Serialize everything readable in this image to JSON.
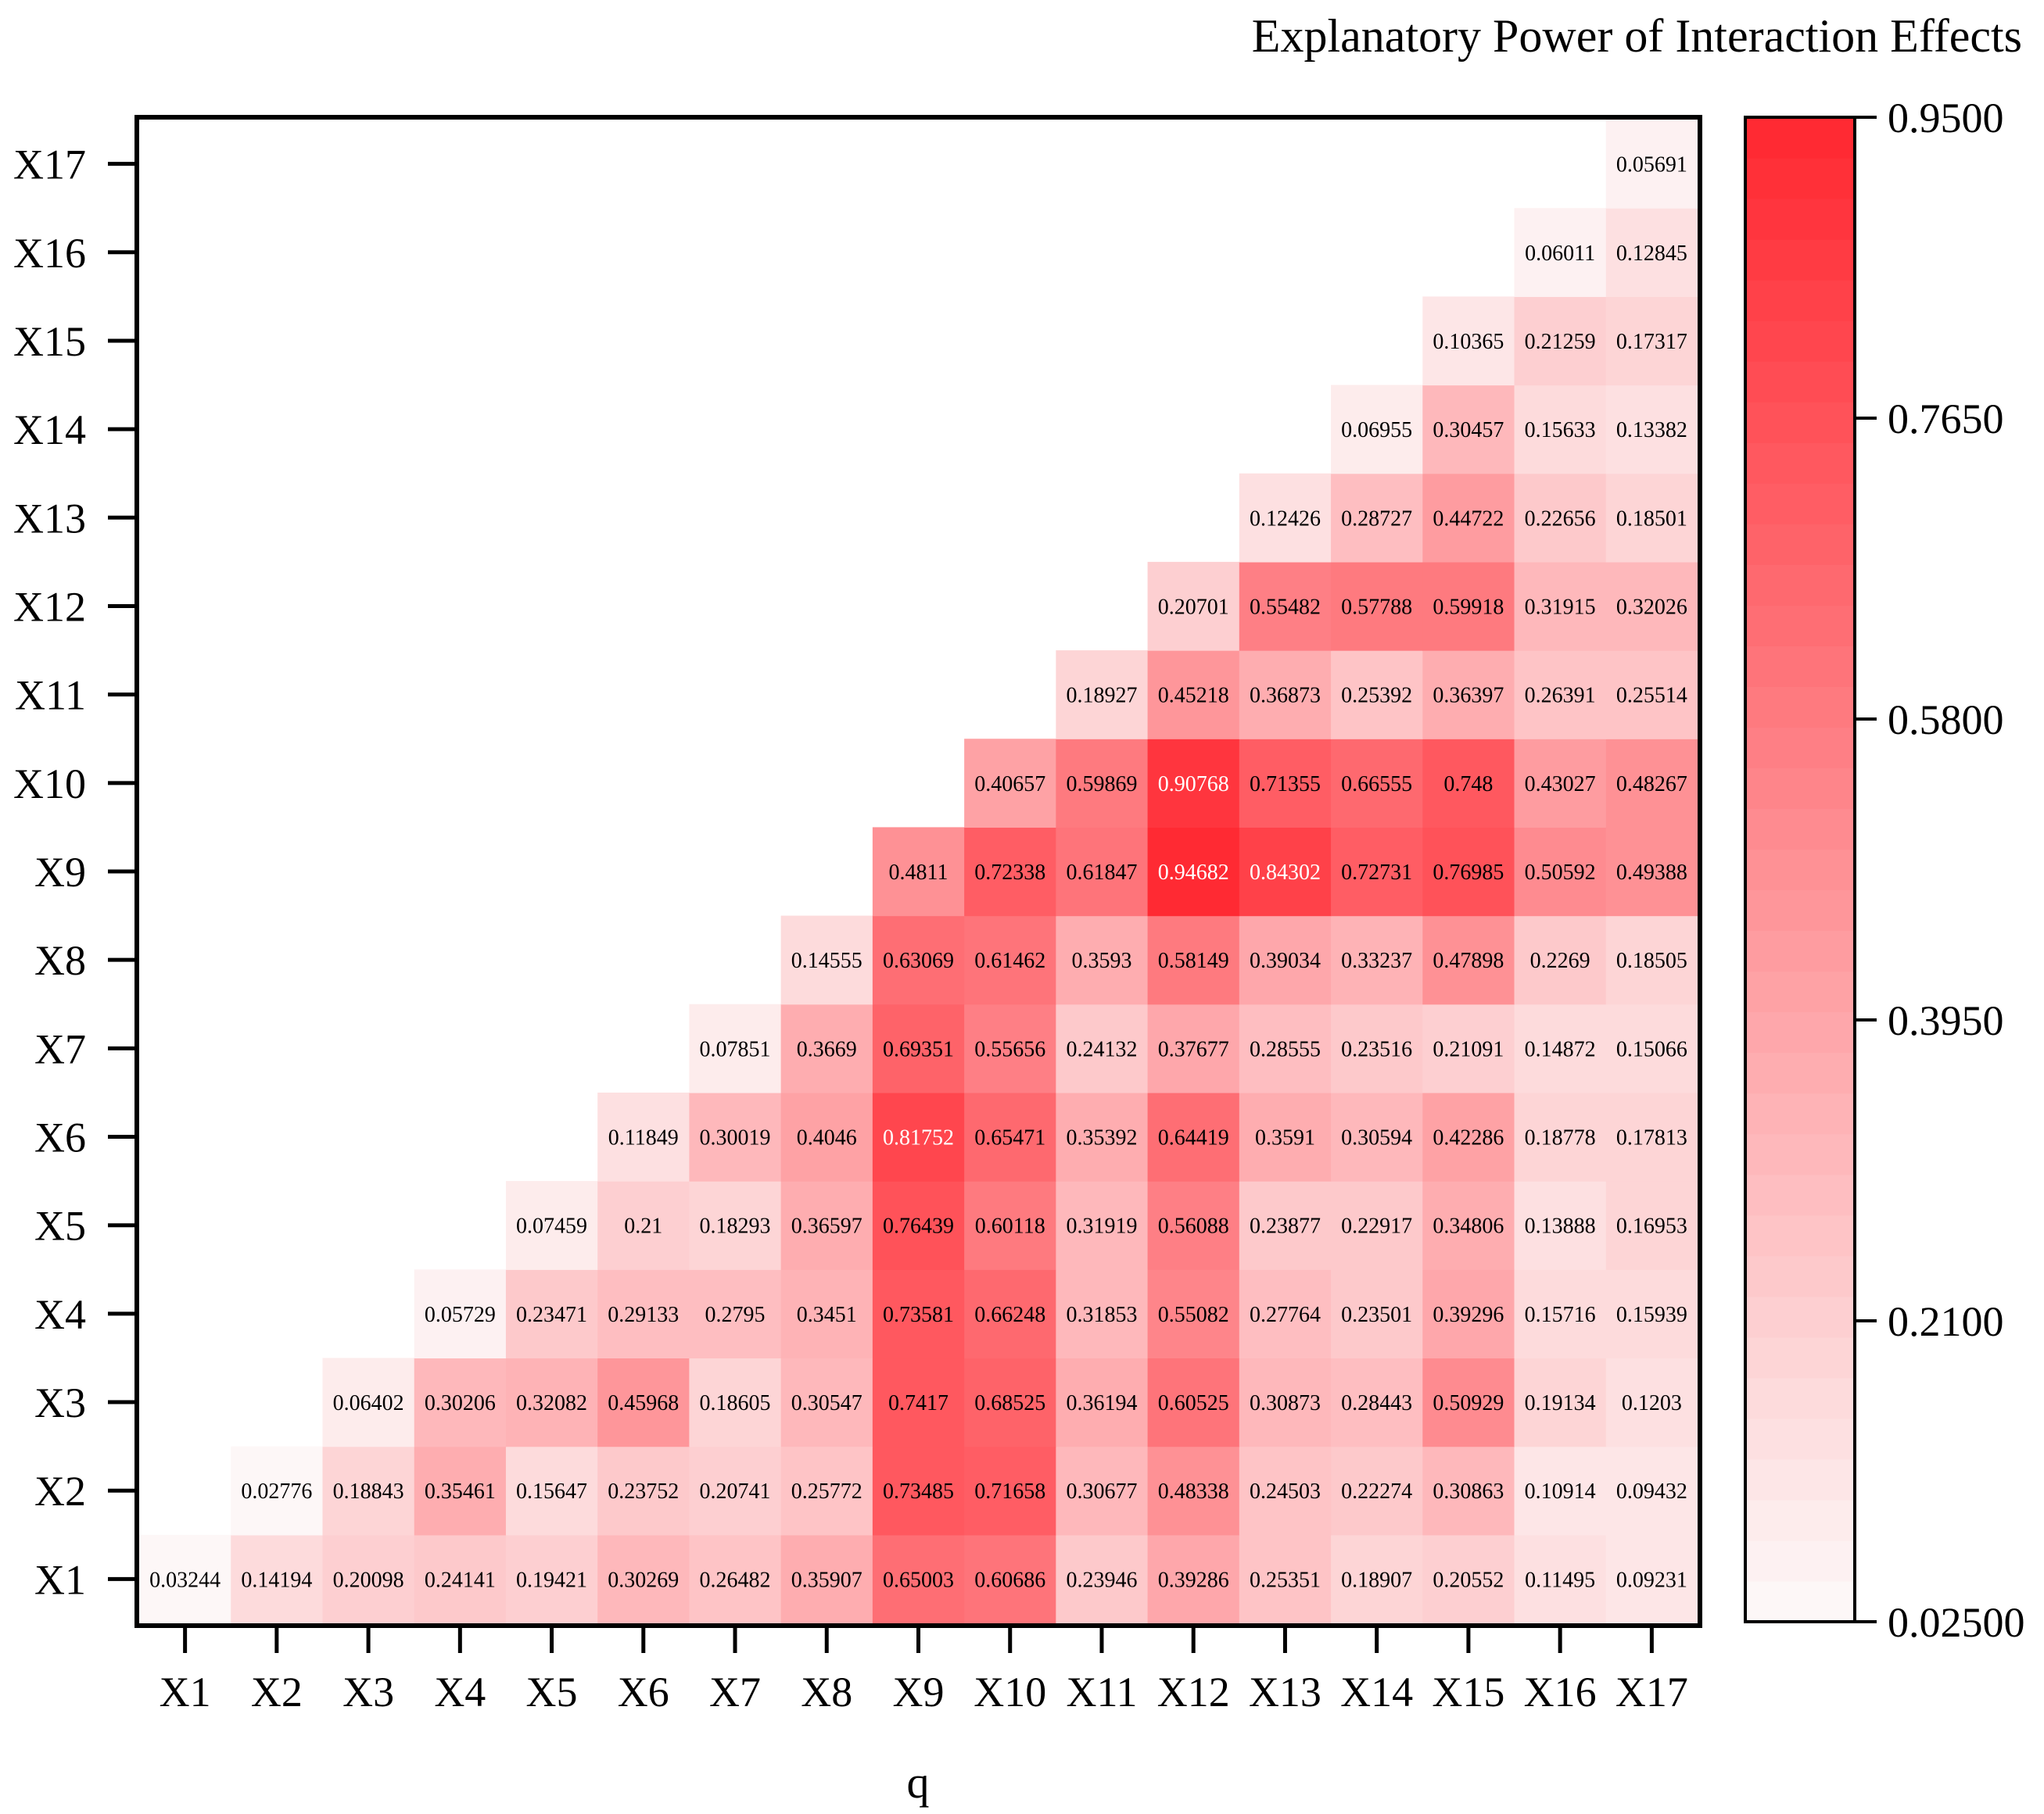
{
  "chart_data": {
    "type": "heatmap",
    "title": "Explanatory Power of Interaction Effects",
    "xlabel": "q",
    "ylabel": "",
    "x_categories": [
      "X1",
      "X2",
      "X3",
      "X4",
      "X5",
      "X6",
      "X7",
      "X8",
      "X9",
      "X10",
      "X11",
      "X12",
      "X13",
      "X14",
      "X15",
      "X16",
      "X17"
    ],
    "y_categories": [
      "X1",
      "X2",
      "X3",
      "X4",
      "X5",
      "X6",
      "X7",
      "X8",
      "X9",
      "X10",
      "X11",
      "X12",
      "X13",
      "X14",
      "X15",
      "X16",
      "X17"
    ],
    "rows": [
      {
        "y": "X1",
        "start": 0,
        "values": [
          "0.03244",
          "0.14194",
          "0.20098",
          "0.24141",
          "0.19421",
          "0.30269",
          "0.26482",
          "0.35907",
          "0.65003",
          "0.60686",
          "0.23946",
          "0.39286",
          "0.25351",
          "0.18907",
          "0.20552",
          "0.11495",
          "0.09231"
        ]
      },
      {
        "y": "X2",
        "start": 1,
        "values": [
          "0.02776",
          "0.18843",
          "0.35461",
          "0.15647",
          "0.23752",
          "0.20741",
          "0.25772",
          "0.73485",
          "0.71658",
          "0.30677",
          "0.48338",
          "0.24503",
          "0.22274",
          "0.30863",
          "0.10914",
          "0.09432"
        ]
      },
      {
        "y": "X3",
        "start": 2,
        "values": [
          "0.06402",
          "0.30206",
          "0.32082",
          "0.45968",
          "0.18605",
          "0.30547",
          "0.7417",
          "0.68525",
          "0.36194",
          "0.60525",
          "0.30873",
          "0.28443",
          "0.50929",
          "0.19134",
          "0.1203"
        ]
      },
      {
        "y": "X4",
        "start": 3,
        "values": [
          "0.05729",
          "0.23471",
          "0.29133",
          "0.2795",
          "0.3451",
          "0.73581",
          "0.66248",
          "0.31853",
          "0.55082",
          "0.27764",
          "0.23501",
          "0.39296",
          "0.15716",
          "0.15939"
        ]
      },
      {
        "y": "X5",
        "start": 4,
        "values": [
          "0.07459",
          "0.21",
          "0.18293",
          "0.36597",
          "0.76439",
          "0.60118",
          "0.31919",
          "0.56088",
          "0.23877",
          "0.22917",
          "0.34806",
          "0.13888",
          "0.16953"
        ]
      },
      {
        "y": "X6",
        "start": 5,
        "values": [
          "0.11849",
          "0.30019",
          "0.4046",
          "0.81752",
          "0.65471",
          "0.35392",
          "0.64419",
          "0.3591",
          "0.30594",
          "0.42286",
          "0.18778",
          "0.17813"
        ]
      },
      {
        "y": "X7",
        "start": 6,
        "values": [
          "0.07851",
          "0.3669",
          "0.69351",
          "0.55656",
          "0.24132",
          "0.37677",
          "0.28555",
          "0.23516",
          "0.21091",
          "0.14872",
          "0.15066"
        ]
      },
      {
        "y": "X8",
        "start": 7,
        "values": [
          "0.14555",
          "0.63069",
          "0.61462",
          "0.3593",
          "0.58149",
          "0.39034",
          "0.33237",
          "0.47898",
          "0.2269",
          "0.18505"
        ]
      },
      {
        "y": "X9",
        "start": 8,
        "values": [
          "0.4811",
          "0.72338",
          "0.61847",
          "0.94682",
          "0.84302",
          "0.72731",
          "0.76985",
          "0.50592",
          "0.49388"
        ]
      },
      {
        "y": "X10",
        "start": 9,
        "values": [
          "0.40657",
          "0.59869",
          "0.90768",
          "0.71355",
          "0.66555",
          "0.748",
          "0.43027",
          "0.48267"
        ]
      },
      {
        "y": "X11",
        "start": 10,
        "values": [
          "0.18927",
          "0.45218",
          "0.36873",
          "0.25392",
          "0.36397",
          "0.26391",
          "0.25514"
        ]
      },
      {
        "y": "X12",
        "start": 11,
        "values": [
          "0.20701",
          "0.55482",
          "0.57788",
          "0.59918",
          "0.31915",
          "0.32026"
        ]
      },
      {
        "y": "X13",
        "start": 12,
        "values": [
          "0.12426",
          "0.28727",
          "0.44722",
          "0.22656",
          "0.18501"
        ]
      },
      {
        "y": "X14",
        "start": 13,
        "values": [
          "0.06955",
          "0.30457",
          "0.15633",
          "0.13382"
        ]
      },
      {
        "y": "X15",
        "start": 14,
        "values": [
          "0.10365",
          "0.21259",
          "0.17317"
        ]
      },
      {
        "y": "X16",
        "start": 15,
        "values": [
          "0.06011",
          "0.12845"
        ]
      },
      {
        "y": "X17",
        "start": 16,
        "values": [
          "0.05691"
        ]
      }
    ],
    "colorbar": {
      "min": 0.025,
      "max": 0.95,
      "ticks": [
        "0.9500",
        "0.7650",
        "0.5800",
        "0.3950",
        "0.2100",
        "0.02500"
      ],
      "tick_values": [
        0.95,
        0.765,
        0.58,
        0.395,
        0.21,
        0.025
      ],
      "low_color": "#fdf7f7",
      "high_color": "#ff2a33",
      "steps": 37
    },
    "bright_text_threshold": 0.8,
    "grid": false
  }
}
